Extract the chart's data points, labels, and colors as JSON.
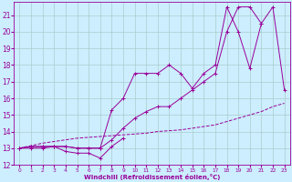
{
  "xlabel": "Windchill (Refroidissement éolien,°C)",
  "x_all": [
    0,
    1,
    2,
    3,
    4,
    5,
    6,
    7,
    8,
    9,
    10,
    11,
    12,
    13,
    14,
    15,
    16,
    17,
    18,
    19,
    20,
    21,
    22,
    23
  ],
  "line_min": [
    13.0,
    13.1,
    13.1,
    13.1,
    12.8,
    12.7,
    12.7,
    12.4,
    13.1,
    13.6,
    null,
    null,
    null,
    null,
    null,
    null,
    null,
    null,
    null,
    null,
    null,
    null,
    null,
    null
  ],
  "line_avg": [
    13.0,
    13.0,
    13.0,
    13.1,
    13.1,
    13.0,
    13.0,
    13.0,
    13.5,
    14.2,
    14.8,
    15.2,
    15.5,
    15.5,
    16.0,
    16.5,
    17.0,
    17.5,
    20.0,
    21.5,
    21.5,
    20.5,
    null,
    null
  ],
  "line_max": [
    13.0,
    13.1,
    13.1,
    13.1,
    13.1,
    13.0,
    13.0,
    13.0,
    15.3,
    16.0,
    17.5,
    17.5,
    17.5,
    18.0,
    17.5,
    16.6,
    17.5,
    18.0,
    21.5,
    20.0,
    17.8,
    20.5,
    21.5,
    16.5
  ],
  "line_straight": [
    13.0,
    13.15,
    13.3,
    13.4,
    13.5,
    13.6,
    13.65,
    13.7,
    13.75,
    13.8,
    13.85,
    13.9,
    14.0,
    14.05,
    14.1,
    14.2,
    14.3,
    14.4,
    14.6,
    14.8,
    15.0,
    15.2,
    15.5,
    15.7
  ],
  "color": "#990099",
  "bg_color": "#cceeff",
  "grid_color": "#aacccc",
  "ylim": [
    12,
    21.5
  ],
  "xlim": [
    -0.5,
    23.5
  ],
  "yticks": [
    12,
    13,
    14,
    15,
    16,
    17,
    18,
    19,
    20,
    21
  ],
  "xticks": [
    0,
    1,
    2,
    3,
    4,
    5,
    6,
    7,
    8,
    9,
    10,
    11,
    12,
    13,
    14,
    15,
    16,
    17,
    18,
    19,
    20,
    21,
    22,
    23
  ]
}
